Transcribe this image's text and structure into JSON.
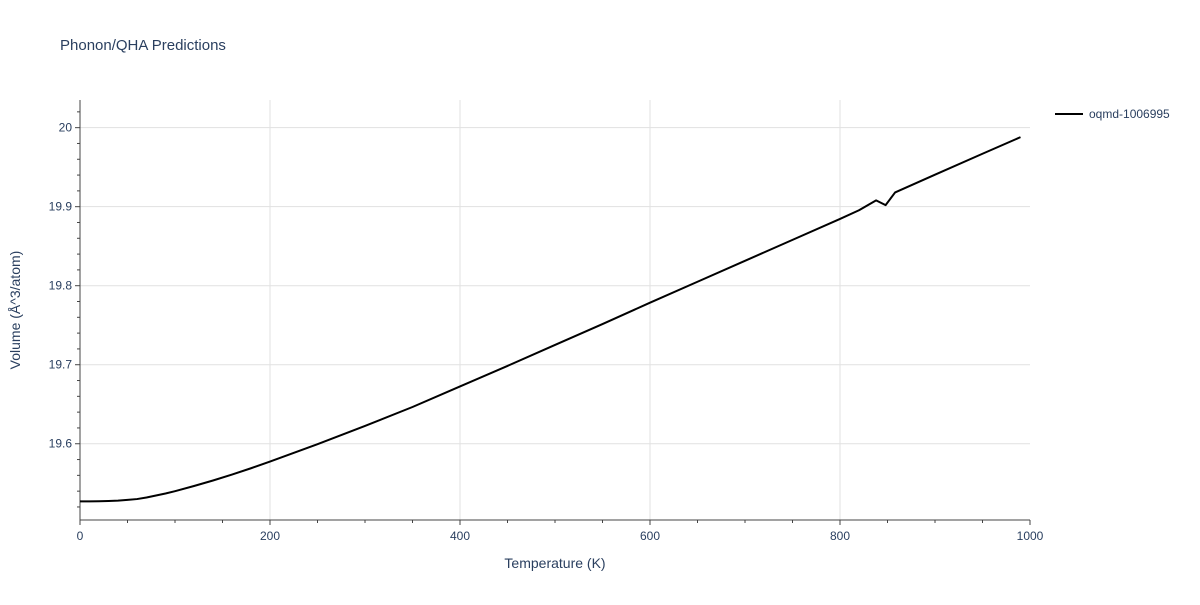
{
  "chart_data": {
    "type": "line",
    "title": "Phonon/QHA Predictions",
    "xlabel": "Temperature (K)",
    "ylabel": "Volume (Å^3/atom)",
    "xlim": [
      0,
      1000
    ],
    "ylim": [
      19.5035,
      20.035
    ],
    "x_major_ticks": [
      0,
      200,
      400,
      600,
      800,
      1000
    ],
    "x_minor_ticks": [
      50,
      100,
      150,
      250,
      300,
      350,
      450,
      500,
      550,
      650,
      700,
      750,
      850,
      900,
      950
    ],
    "y_major_ticks": [
      19.6,
      19.7,
      19.8,
      19.9,
      20.0
    ],
    "y_tick_labels": [
      "19.6",
      "19.7",
      "19.8",
      "19.9",
      "20"
    ],
    "y_minor_ticks": [
      19.52,
      19.54,
      19.56,
      19.58,
      19.62,
      19.64,
      19.66,
      19.68,
      19.72,
      19.74,
      19.76,
      19.78,
      19.82,
      19.84,
      19.86,
      19.88,
      19.92,
      19.94,
      19.96,
      19.98,
      20.02
    ],
    "grid": true,
    "legend_position": "top-right",
    "series": [
      {
        "name": "oqmd-1006995",
        "color": "#000000",
        "x": [
          0,
          10,
          20,
          30,
          40,
          50,
          60,
          70,
          80,
          90,
          100,
          120,
          140,
          160,
          180,
          200,
          250,
          300,
          350,
          400,
          450,
          500,
          550,
          600,
          650,
          700,
          750,
          800,
          820,
          838,
          848,
          858,
          900,
          950,
          990
        ],
        "y": [
          19.527,
          19.527,
          19.5272,
          19.5275,
          19.528,
          19.529,
          19.53,
          19.532,
          19.5345,
          19.537,
          19.54,
          19.5465,
          19.5535,
          19.561,
          19.569,
          19.5775,
          19.5995,
          19.6225,
          19.6465,
          19.6725,
          19.6985,
          19.725,
          19.7515,
          19.7785,
          19.805,
          19.8315,
          19.858,
          19.8845,
          19.8955,
          19.908,
          19.902,
          19.918,
          19.9405,
          19.967,
          19.988
        ]
      }
    ]
  }
}
